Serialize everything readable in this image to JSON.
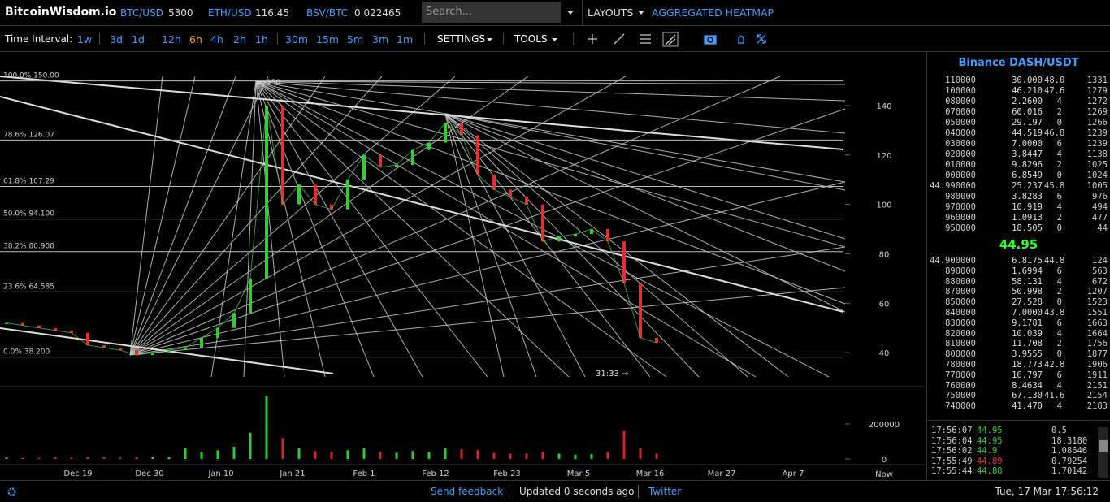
{
  "header": {
    "brand": "BitcoinWisdom.io",
    "tickers": [
      {
        "label": "BTC/USD",
        "value": "5300"
      },
      {
        "label": "ETH/USD",
        "value": "116.45"
      },
      {
        "label": "BSV/BTC",
        "value": "0.022465"
      }
    ],
    "search_placeholder": "Search...",
    "layouts": "LAYOUTS",
    "heatmap": "AGGREGATED HEATMAP"
  },
  "toolbar": {
    "label": "Time Interval:",
    "intervals": [
      "1w",
      "3d",
      "1d",
      "12h",
      "6h",
      "4h",
      "2h",
      "1h",
      "30m",
      "15m",
      "5m",
      "3m",
      "1m"
    ],
    "active_index": 4,
    "settings": "SETTINGS",
    "tools": "TOOLS"
  },
  "chart": {
    "price": [
      52,
      51,
      50,
      49,
      48,
      43,
      42,
      41,
      39,
      40,
      41,
      42,
      46,
      50,
      56,
      70,
      140,
      100,
      108,
      100,
      98,
      110,
      120,
      115,
      116,
      122,
      125,
      133,
      128,
      112,
      106,
      103,
      100,
      85,
      87,
      88,
      90,
      85,
      68,
      46,
      44
    ],
    "volume": [
      8000,
      6000,
      7000,
      9000,
      8000,
      10000,
      9000,
      7000,
      12000,
      10000,
      11000,
      60000,
      40000,
      50000,
      70000,
      150000,
      360000,
      120000,
      60000,
      45000,
      40000,
      50000,
      60000,
      40000,
      35000,
      45000,
      40000,
      60000,
      55000,
      50000,
      35000,
      30000,
      30000,
      40000,
      30000,
      25000,
      28000,
      40000,
      160000,
      60000,
      30000
    ],
    "ylim": [
      28.2,
      161.7
    ],
    "yticks": [
      140,
      120,
      100,
      80,
      60,
      40
    ],
    "volume_ylim": [
      0,
      400000
    ],
    "volume_yticks": [
      200000,
      0
    ],
    "xticks": [
      "Dec 19",
      "Dec 30",
      "Jan 10",
      "Jan 21",
      "Feb 1",
      "Feb 12",
      "Feb 23",
      "Mar 5",
      "Mar 16",
      "Mar 27",
      "Apr 7"
    ],
    "now_label": "Now",
    "fib_levels": [
      {
        "label": "100.0% 150.00",
        "value": 150
      },
      {
        "label": "78.6% 126.07",
        "value": 126.07
      },
      {
        "label": "61.8% 107.29",
        "value": 107.29
      },
      {
        "label": "50.0% 94.100",
        "value": 94.1
      },
      {
        "label": "38.2% 80.908",
        "value": 80.908
      },
      {
        "label": "23.6% 64.585",
        "value": 64.585
      },
      {
        "label": "0.0% 38.200",
        "value": 38.2
      }
    ],
    "peak_label": "150",
    "countdown": "31:33 →"
  },
  "order_book": {
    "title": "Binance DASH/USDT",
    "asks": [
      [
        "110000",
        "30.000",
        "48.0",
        "1331"
      ],
      [
        "100000",
        "46.210",
        "47.6",
        "1279"
      ],
      [
        "080000",
        "2.2600",
        "4",
        "1272"
      ],
      [
        "070000",
        "60.016",
        "2",
        "1269"
      ],
      [
        "050000",
        "29.197",
        "0",
        "1266"
      ],
      [
        "040000",
        "44.519",
        "46.8",
        "1239"
      ],
      [
        "030000",
        "7.0000",
        "6",
        "1239"
      ],
      [
        "020000",
        "3.8447",
        "4",
        "1138"
      ],
      [
        "010000",
        "9.8296",
        "2",
        "1025"
      ],
      [
        "000000",
        "6.8549",
        "0",
        "1024"
      ],
      [
        "44.990000",
        "25.237",
        "45.8",
        "1005"
      ],
      [
        "980000",
        "3.8283",
        "6",
        "976"
      ],
      [
        "970000",
        "10.919",
        "4",
        "494"
      ],
      [
        "960000",
        "1.0913",
        "2",
        "477"
      ],
      [
        "950000",
        "18.505",
        "0",
        "44"
      ]
    ],
    "last_price": "44.95",
    "bids": [
      [
        "44.900000",
        "6.8175",
        "44.8",
        "124"
      ],
      [
        "890000",
        "1.6994",
        "6",
        "563"
      ],
      [
        "880000",
        "58.131",
        "4",
        "672"
      ],
      [
        "870000",
        "50.998",
        "2",
        "1207"
      ],
      [
        "850000",
        "27.528",
        "0",
        "1523"
      ],
      [
        "840000",
        "7.0000",
        "43.8",
        "1551"
      ],
      [
        "830000",
        "9.1781",
        "6",
        "1663"
      ],
      [
        "820000",
        "10.039",
        "4",
        "1664"
      ],
      [
        "810000",
        "11.708",
        "2",
        "1756"
      ],
      [
        "800000",
        "3.9555",
        "0",
        "1877"
      ],
      [
        "780000",
        "18.773",
        "42.8",
        "1906"
      ],
      [
        "770000",
        "16.797",
        "6",
        "1911"
      ],
      [
        "760000",
        "8.4634",
        "4",
        "2151"
      ],
      [
        "750000",
        "67.130",
        "41.6",
        "2154"
      ],
      [
        "740000",
        "41.470",
        "4",
        "2183"
      ]
    ]
  },
  "trades": [
    {
      "time": "17:56:07",
      "price": "44.95",
      "amount": "0.5",
      "side": "buy"
    },
    {
      "time": "17:56:04",
      "price": "44.95",
      "amount": "18.3180",
      "side": "buy"
    },
    {
      "time": "17:56:02",
      "price": "44.9",
      "amount": "1.08646",
      "side": "buy"
    },
    {
      "time": "17:55:49",
      "price": "44.89",
      "amount": "0.79254",
      "side": "sell"
    },
    {
      "time": "17:55:44",
      "price": "44.88",
      "amount": "1.70142",
      "side": "buy"
    }
  ],
  "footer": {
    "feedback": "Send feedback",
    "updated": "Updated 0 seconds ago",
    "twitter": "Twitter",
    "datetime": "Tue, 17 Mar 17:56:12"
  }
}
